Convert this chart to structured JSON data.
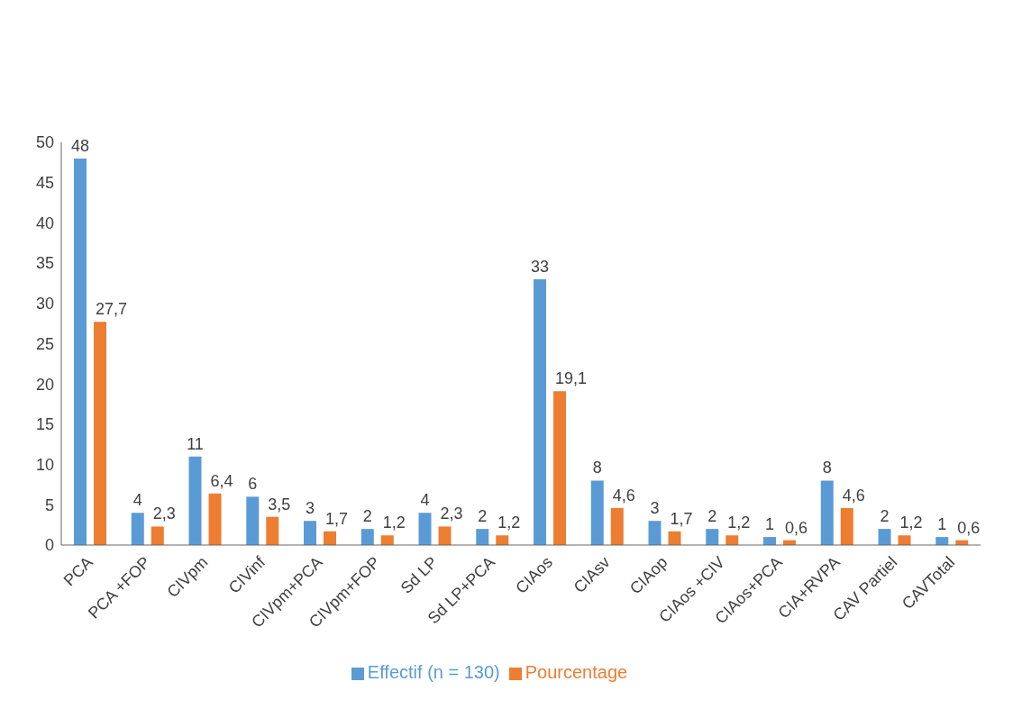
{
  "chart_data": {
    "type": "bar",
    "categories": [
      "PCA",
      "PCA +FOP",
      "CIVpm",
      "CIVinf",
      "CIVpm+PCA",
      "CIVpm+FOP",
      "Sd LP",
      "Sd LP+PCA",
      "CIAos",
      "CIAsv",
      "CIAop",
      "CIAos +CIV",
      "CIAos+PCA",
      "CIA+RVPA",
      "CAV Partiel",
      "CAVTotal"
    ],
    "series": [
      {
        "name": "Effectif (n = 130)",
        "color": "#5b9bd5",
        "values": [
          48,
          4,
          11,
          6,
          3,
          2,
          4,
          2,
          33,
          8,
          3,
          2,
          1,
          8,
          2,
          1
        ],
        "value_labels": [
          "48",
          "4",
          "11",
          "6",
          "3",
          "2",
          "4",
          "2",
          "33",
          "8",
          "3",
          "2",
          "1",
          "8",
          "2",
          "1"
        ]
      },
      {
        "name": "Pourcentage",
        "color": "#ed7d31",
        "values": [
          27.7,
          2.3,
          6.4,
          3.5,
          1.7,
          1.2,
          2.3,
          1.2,
          19.1,
          4.6,
          1.7,
          1.2,
          0.6,
          4.6,
          1.2,
          0.6
        ],
        "value_labels": [
          "27,7",
          "2,3",
          "6,4",
          "3,5",
          "1,7",
          "1,2",
          "2,3",
          "1,2",
          "19,1",
          "4,6",
          "1,7",
          "1,2",
          "0,6",
          "4,6",
          "1,2",
          "0,6"
        ]
      }
    ],
    "ylim": [
      0,
      50
    ],
    "yticks": [
      0,
      5,
      10,
      15,
      20,
      25,
      30,
      35,
      40,
      45,
      50
    ],
    "grid": false,
    "legend": "bottom"
  }
}
